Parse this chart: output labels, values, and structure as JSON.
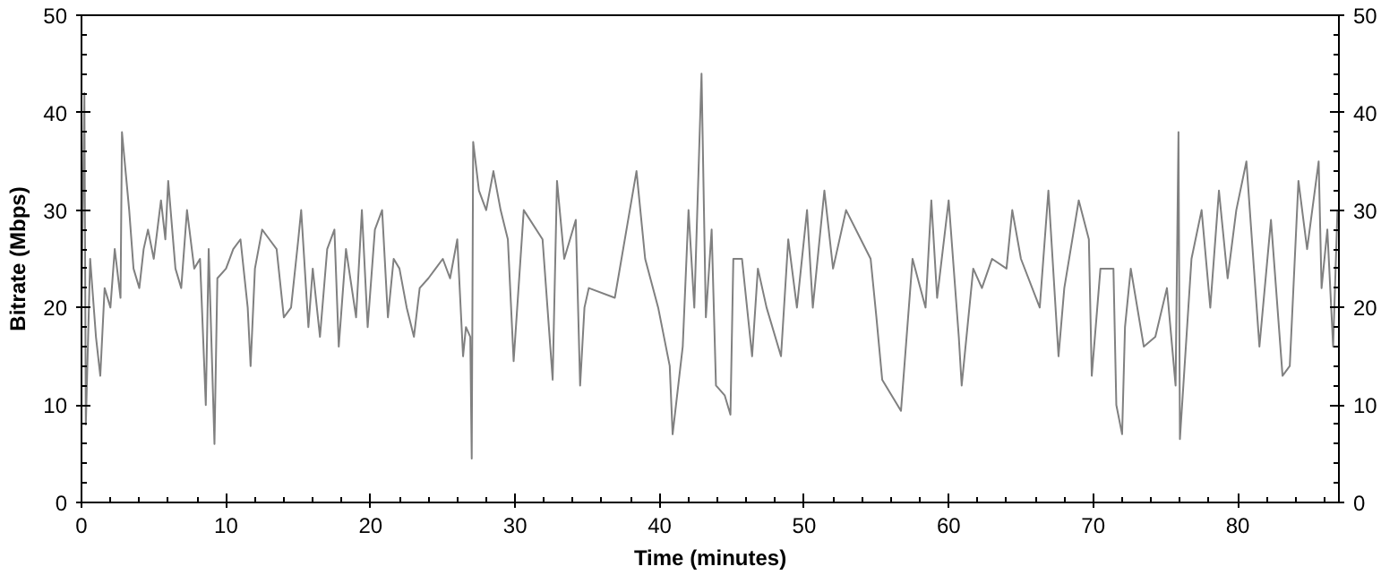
{
  "chart_data": {
    "type": "line",
    "xlabel": "Time (minutes)",
    "ylabel": "Bitrate (Mbps)",
    "xlim": [
      0,
      87
    ],
    "ylim": [
      0,
      50
    ],
    "y2lim": [
      0,
      50
    ],
    "xticks": [
      0,
      10,
      20,
      30,
      40,
      50,
      60,
      70,
      80
    ],
    "yticks": [
      0,
      10,
      20,
      30,
      40,
      50
    ],
    "y2ticks": [
      0,
      10,
      20,
      30,
      40,
      50
    ],
    "grid": false,
    "marker": "none",
    "line_style": "solid",
    "series": [
      {
        "color": "#808080",
        "x": [
          0,
          0.2,
          0.3,
          0.6,
          1,
          1.3,
          1.6,
          2,
          2.3,
          2.7,
          2.8,
          3.3,
          3.6,
          4,
          4.3,
          4.6,
          5,
          5.5,
          5.8,
          6,
          6.5,
          6.9,
          7.3,
          7.8,
          8.2,
          8.6,
          8.8,
          9.2,
          9.4,
          10,
          10.5,
          11,
          11.5,
          11.7,
          12,
          12.5,
          13,
          13.5,
          14,
          14.5,
          15,
          15.2,
          15.7,
          16,
          16.5,
          17,
          17.5,
          17.8,
          18.3,
          18.7,
          19,
          19.4,
          19.8,
          20.3,
          20.8,
          21.2,
          21.6,
          22,
          22.5,
          23,
          23.4,
          24,
          24.5,
          25,
          25.5,
          26,
          26.4,
          26.6,
          26.9,
          27,
          27.1,
          27.5,
          28,
          28.5,
          29,
          29.5,
          29.9,
          30.6,
          31.9,
          32.6,
          32.9,
          33.4,
          34.2,
          34.5,
          34.8,
          35.1,
          36.9,
          38.4,
          39,
          39.9,
          40.7,
          40.9,
          41.6,
          42,
          42.4,
          42.9,
          43.2,
          43.6,
          43.9,
          44.5,
          44.9,
          45.1,
          45.7,
          46.4,
          46.8,
          47.4,
          48.4,
          48.9,
          49.5,
          50.2,
          50.6,
          51.4,
          52,
          52.9,
          54.6,
          55,
          55.4,
          56.7,
          57.5,
          58.4,
          58.8,
          59.2,
          60,
          60.7,
          60.9,
          61.7,
          62.3,
          63,
          64,
          64.4,
          65,
          66.3,
          66.9,
          67.6,
          68,
          69,
          69.7,
          69.9,
          70.5,
          71.4,
          71.6,
          72,
          72.2,
          72.6,
          73.5,
          74.3,
          75.1,
          75.7,
          75.9,
          76,
          76.8,
          77.5,
          78.1,
          78.7,
          79.3,
          79.9,
          80.6,
          81.5,
          82.3,
          83.1,
          83.6,
          84.2,
          84.8,
          85.6,
          85.8,
          86.2,
          86.6,
          86.9
        ],
        "values": [
          20,
          42,
          8,
          25,
          17,
          13,
          22,
          20,
          26,
          21,
          38,
          30,
          24,
          22,
          26,
          28,
          25,
          31,
          27,
          33,
          24,
          22,
          30,
          24,
          25,
          10,
          26,
          6,
          23,
          24,
          26,
          27,
          20,
          14,
          24,
          28,
          27,
          26,
          19,
          20,
          27,
          30,
          18,
          24,
          17,
          26,
          28,
          16,
          26,
          22,
          19,
          30,
          18,
          28,
          30,
          19,
          25,
          24,
          20,
          17,
          22,
          23,
          24,
          25,
          23,
          27,
          15,
          18,
          17,
          4.5,
          37,
          32,
          30,
          34,
          30,
          27,
          14.5,
          30,
          27,
          12.6,
          33,
          25,
          29,
          12,
          20,
          22,
          21,
          34,
          25,
          20,
          14,
          7,
          16,
          30,
          20,
          44,
          19,
          28,
          12,
          11,
          9,
          25,
          25,
          15,
          24,
          20,
          15,
          27,
          20,
          30,
          20,
          32,
          24,
          30,
          25,
          19,
          12.6,
          9.4,
          25,
          20,
          31,
          21,
          31,
          17,
          12,
          24,
          22,
          25,
          24,
          30,
          25,
          20,
          32,
          15,
          22,
          31,
          27,
          13,
          24,
          24,
          10,
          7,
          18,
          24,
          16,
          17,
          22,
          12,
          38,
          6.5,
          25,
          30,
          20,
          32,
          23,
          30,
          35,
          16,
          29,
          13,
          14,
          33,
          26,
          35,
          22,
          28,
          16,
          30
        ]
      }
    ]
  }
}
